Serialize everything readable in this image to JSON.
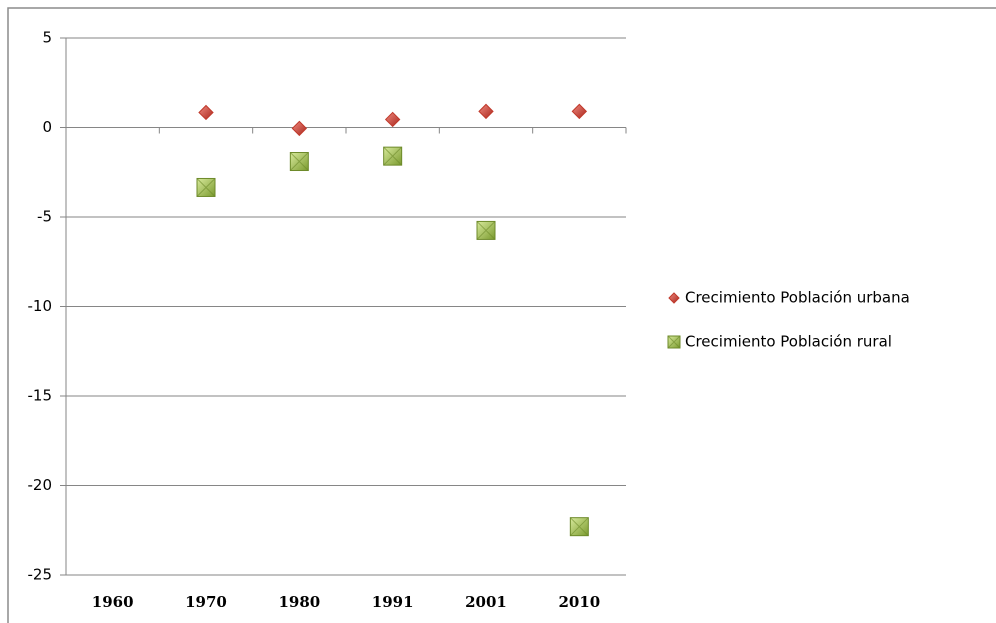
{
  "chart_data": {
    "type": "dot",
    "categories": [
      "1960",
      "1970",
      "1980",
      "1991",
      "2001",
      "2010"
    ],
    "series": [
      {
        "name": "Crecimiento Población urbana",
        "color": "#c0392b",
        "marker": "diamond",
        "values": [
          null,
          0.84,
          -0.05,
          0.45,
          0.9,
          0.9
        ]
      },
      {
        "name": "Crecimiento Población rural",
        "color": "#9bbb59",
        "marker": "square",
        "values": [
          null,
          -3.35,
          -1.9,
          -1.6,
          -5.75,
          -22.3
        ]
      }
    ],
    "ylim": [
      -25,
      5
    ],
    "yticks": [
      5,
      0,
      -5,
      -10,
      -15,
      -20,
      -25
    ],
    "grid": true,
    "legend": "right"
  }
}
